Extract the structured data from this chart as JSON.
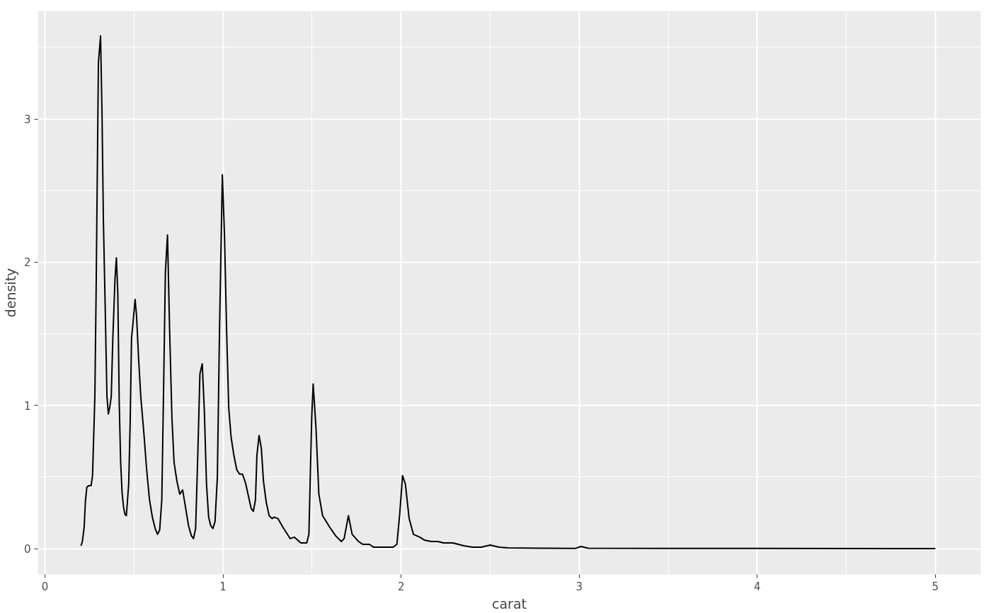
{
  "chart_data": {
    "type": "line",
    "xlabel": "carat",
    "ylabel": "density",
    "xlim": [
      -0.04,
      5.255
    ],
    "ylim": [
      -0.18,
      3.754
    ],
    "xticks": [
      0,
      1,
      2,
      3,
      4,
      5
    ],
    "yticks": [
      0,
      1,
      2,
      3
    ],
    "grid": true,
    "line_style": "solid",
    "series": [
      {
        "color": "#000000",
        "x": [
          0.202,
          0.21,
          0.22,
          0.227,
          0.235,
          0.247,
          0.259,
          0.267,
          0.28,
          0.287,
          0.3,
          0.312,
          0.32,
          0.328,
          0.34,
          0.348,
          0.356,
          0.364,
          0.372,
          0.381,
          0.393,
          0.401,
          0.409,
          0.417,
          0.425,
          0.433,
          0.441,
          0.449,
          0.457,
          0.47,
          0.478,
          0.486,
          0.494,
          0.506,
          0.514,
          0.526,
          0.538,
          0.555,
          0.571,
          0.587,
          0.603,
          0.619,
          0.632,
          0.644,
          0.656,
          0.668,
          0.676,
          0.688,
          0.7,
          0.713,
          0.725,
          0.741,
          0.757,
          0.773,
          0.789,
          0.806,
          0.822,
          0.834,
          0.846,
          0.858,
          0.87,
          0.883,
          0.895,
          0.907,
          0.919,
          0.931,
          0.943,
          0.955,
          0.968,
          0.98,
          0.996,
          1.008,
          1.02,
          1.032,
          1.045,
          1.061,
          1.077,
          1.093,
          1.109,
          1.126,
          1.142,
          1.158,
          1.17,
          1.182,
          1.19,
          1.202,
          1.215,
          1.227,
          1.243,
          1.259,
          1.275,
          1.287,
          1.308,
          1.336,
          1.377,
          1.401,
          1.437,
          1.47,
          1.482,
          1.498,
          1.506,
          1.522,
          1.538,
          1.559,
          1.599,
          1.632,
          1.664,
          1.68,
          1.704,
          1.725,
          1.761,
          1.785,
          1.822,
          1.846,
          1.903,
          1.955,
          1.976,
          1.992,
          2.008,
          2.024,
          2.045,
          2.069,
          2.105,
          2.13,
          2.17,
          2.206,
          2.239,
          2.291,
          2.352,
          2.4,
          2.45,
          2.5,
          2.55,
          2.6,
          2.8,
          2.98,
          3.01,
          3.05,
          3.5,
          4.0,
          5.0
        ],
        "values": [
          0.02,
          0.05,
          0.15,
          0.33,
          0.43,
          0.44,
          0.44,
          0.51,
          1.06,
          1.78,
          3.39,
          3.58,
          3.06,
          2.29,
          1.57,
          1.06,
          0.94,
          0.99,
          1.06,
          1.47,
          1.88,
          2.03,
          1.78,
          1.01,
          0.6,
          0.39,
          0.29,
          0.24,
          0.23,
          0.45,
          0.86,
          1.47,
          1.57,
          1.74,
          1.63,
          1.32,
          1.06,
          0.81,
          0.55,
          0.34,
          0.22,
          0.14,
          0.1,
          0.13,
          0.34,
          1.27,
          1.93,
          2.19,
          1.52,
          0.91,
          0.6,
          0.47,
          0.38,
          0.41,
          0.29,
          0.16,
          0.09,
          0.07,
          0.14,
          0.65,
          1.22,
          1.29,
          0.96,
          0.45,
          0.22,
          0.16,
          0.14,
          0.19,
          0.5,
          1.52,
          2.61,
          2.19,
          1.52,
          0.98,
          0.78,
          0.65,
          0.55,
          0.52,
          0.52,
          0.46,
          0.37,
          0.28,
          0.26,
          0.34,
          0.65,
          0.79,
          0.7,
          0.47,
          0.32,
          0.23,
          0.21,
          0.22,
          0.21,
          0.15,
          0.07,
          0.08,
          0.04,
          0.04,
          0.1,
          0.92,
          1.15,
          0.84,
          0.38,
          0.23,
          0.15,
          0.09,
          0.05,
          0.07,
          0.23,
          0.1,
          0.05,
          0.03,
          0.03,
          0.01,
          0.01,
          0.01,
          0.03,
          0.24,
          0.51,
          0.45,
          0.21,
          0.1,
          0.08,
          0.06,
          0.05,
          0.05,
          0.04,
          0.04,
          0.02,
          0.01,
          0.01,
          0.025,
          0.01,
          0.005,
          0.003,
          0.002,
          0.015,
          0.003,
          0.002,
          0.002,
          0.0
        ]
      }
    ]
  }
}
